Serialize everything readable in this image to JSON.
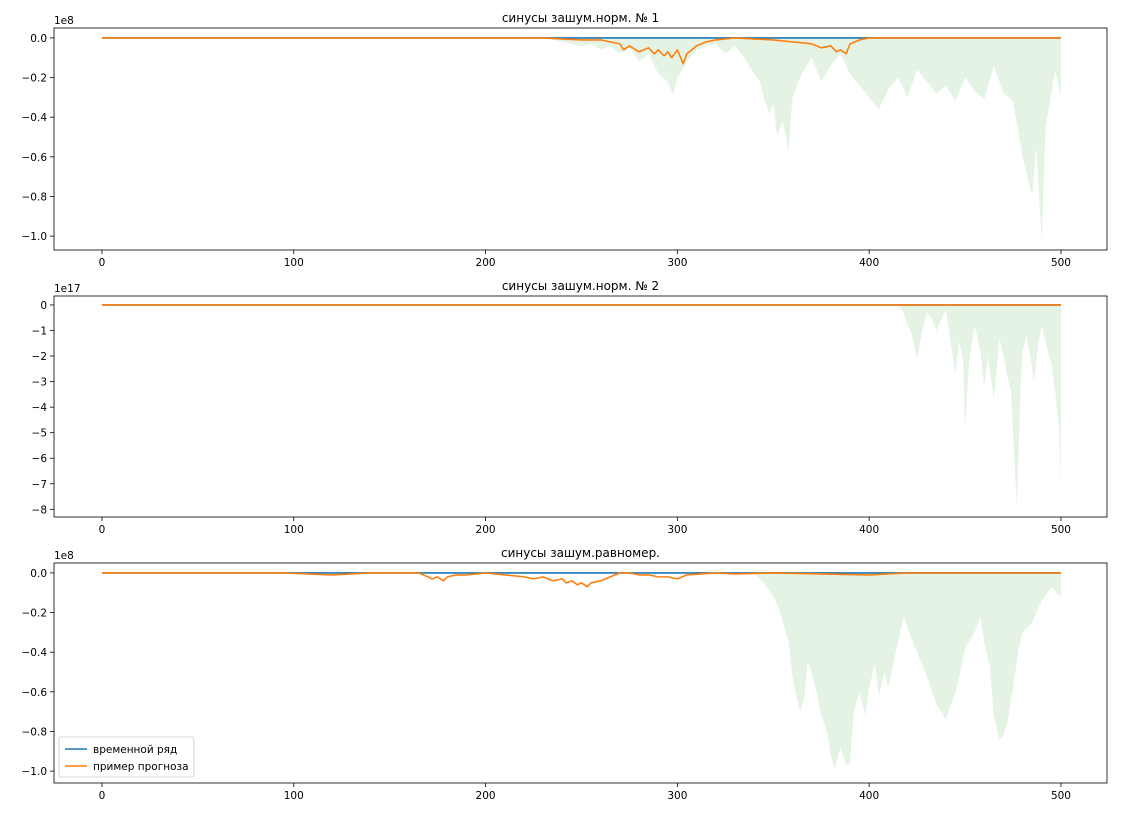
{
  "chart_data": [
    {
      "type": "line",
      "title": "синусы зашум.норм. № 1",
      "xlabel": "",
      "ylabel": "",
      "exponent_label": "1e8",
      "xlim": [
        -25,
        524
      ],
      "ylim": [
        -1.07,
        0.05
      ],
      "xticks": [
        0,
        100,
        200,
        300,
        400,
        500
      ],
      "xtick_labels": [
        "0",
        "100",
        "200",
        "300",
        "400",
        "500"
      ],
      "yticks": [
        0.0,
        -0.2,
        -0.4,
        -0.6,
        -0.8,
        -1.0
      ],
      "ytick_labels": [
        "0.0",
        "−0.2",
        "−0.4",
        "−0.6",
        "−0.8",
        "−1.0"
      ],
      "grid": false,
      "legend": null,
      "series": [
        {
          "color": "#1f77b4",
          "x": [
            0,
            500
          ],
          "values": [
            0,
            0
          ]
        },
        {
          "color": "#ff7f0e",
          "x": [
            0,
            230,
            250,
            260,
            265,
            270,
            272,
            275,
            280,
            285,
            288,
            290,
            293,
            295,
            297,
            300,
            303,
            305,
            310,
            315,
            320,
            330,
            340,
            350,
            360,
            370,
            375,
            380,
            383,
            385,
            388,
            390,
            395,
            400,
            410,
            500
          ],
          "values": [
            0,
            0,
            -0.01,
            -0.01,
            -0.02,
            -0.03,
            -0.06,
            -0.04,
            -0.07,
            -0.05,
            -0.08,
            -0.06,
            -0.09,
            -0.07,
            -0.1,
            -0.06,
            -0.13,
            -0.08,
            -0.04,
            -0.02,
            -0.01,
            0,
            -0.005,
            -0.01,
            -0.02,
            -0.03,
            -0.05,
            -0.04,
            -0.07,
            -0.06,
            -0.08,
            -0.03,
            -0.01,
            0,
            0,
            0
          ]
        }
      ],
      "band": {
        "color": "#2ca02c",
        "opacity": 0.13,
        "x": [
          230,
          240,
          250,
          255,
          260,
          265,
          270,
          275,
          280,
          285,
          290,
          295,
          298,
          300,
          305,
          310,
          315,
          320,
          325,
          330,
          335,
          340,
          343,
          345,
          348,
          350,
          352,
          355,
          358,
          360,
          365,
          370,
          375,
          380,
          385,
          390,
          395,
          400,
          405,
          410,
          415,
          420,
          425,
          430,
          435,
          440,
          445,
          450,
          455,
          460,
          465,
          470,
          475,
          480,
          485,
          487,
          490,
          492,
          495,
          497,
          500
        ],
        "lower": [
          0,
          -0.02,
          -0.04,
          -0.03,
          -0.06,
          -0.04,
          -0.08,
          -0.05,
          -0.12,
          -0.08,
          -0.18,
          -0.22,
          -0.29,
          -0.2,
          -0.12,
          -0.06,
          -0.04,
          -0.03,
          -0.08,
          -0.04,
          -0.1,
          -0.18,
          -0.22,
          -0.3,
          -0.38,
          -0.33,
          -0.49,
          -0.42,
          -0.57,
          -0.3,
          -0.18,
          -0.1,
          -0.22,
          -0.14,
          -0.08,
          -0.18,
          -0.24,
          -0.3,
          -0.36,
          -0.26,
          -0.2,
          -0.3,
          -0.16,
          -0.22,
          -0.28,
          -0.24,
          -0.32,
          -0.2,
          -0.27,
          -0.31,
          -0.14,
          -0.28,
          -0.32,
          -0.6,
          -0.8,
          -0.55,
          -1.02,
          -0.45,
          -0.28,
          -0.16,
          -0.3
        ]
      }
    },
    {
      "type": "line",
      "title": "синусы зашум.норм. № 2",
      "xlabel": "",
      "ylabel": "",
      "exponent_label": "1e17",
      "xlim": [
        -25,
        524
      ],
      "ylim": [
        -8.3,
        0.35
      ],
      "xticks": [
        0,
        100,
        200,
        300,
        400,
        500
      ],
      "xtick_labels": [
        "0",
        "100",
        "200",
        "300",
        "400",
        "500"
      ],
      "yticks": [
        0,
        -1,
        -2,
        -3,
        -4,
        -5,
        -6,
        -7,
        -8
      ],
      "ytick_labels": [
        "0",
        "−1",
        "−2",
        "−3",
        "−4",
        "−5",
        "−6",
        "−7",
        "−8"
      ],
      "grid": false,
      "legend": null,
      "series": [
        {
          "color": "#1f77b4",
          "x": [
            0,
            500
          ],
          "values": [
            0,
            0
          ]
        },
        {
          "color": "#ff7f0e",
          "x": [
            0,
            500
          ],
          "values": [
            0,
            0
          ]
        }
      ],
      "band": {
        "color": "#2ca02c",
        "opacity": 0.13,
        "x": [
          415,
          418,
          420,
          422,
          425,
          428,
          430,
          433,
          435,
          438,
          440,
          442,
          445,
          447,
          449,
          450,
          452,
          455,
          458,
          460,
          462,
          465,
          468,
          470,
          472,
          474,
          476,
          477,
          478,
          479,
          480,
          482,
          484,
          486,
          488,
          490,
          492,
          495,
          497,
          499,
          500
        ],
        "lower": [
          0,
          -0.3,
          -0.8,
          -1.1,
          -2.1,
          -0.9,
          -0.3,
          -0.6,
          -1.0,
          -0.5,
          -0.2,
          -1.2,
          -2.7,
          -1.4,
          -2.2,
          -4.9,
          -2.3,
          -0.8,
          -1.8,
          -3.2,
          -2.0,
          -3.7,
          -1.3,
          -2.0,
          -2.8,
          -3.4,
          -6.5,
          -7.9,
          -5.5,
          -3.1,
          -1.8,
          -1.2,
          -2.0,
          -3.0,
          -1.6,
          -0.8,
          -1.5,
          -2.3,
          -3.4,
          -4.8,
          -7.0
        ]
      }
    },
    {
      "type": "line",
      "title": "синусы зашум.равномер.",
      "xlabel": "",
      "ylabel": "",
      "exponent_label": "1e8",
      "xlim": [
        -25,
        524
      ],
      "ylim": [
        -1.06,
        0.05
      ],
      "xticks": [
        0,
        100,
        200,
        300,
        400,
        500
      ],
      "xtick_labels": [
        "0",
        "100",
        "200",
        "300",
        "400",
        "500"
      ],
      "yticks": [
        0.0,
        -0.2,
        -0.4,
        -0.6,
        -0.8,
        -1.0
      ],
      "ytick_labels": [
        "0.0",
        "−0.2",
        "−0.4",
        "−0.6",
        "−0.8",
        "−1.0"
      ],
      "grid": false,
      "legend": {
        "position": "lower left",
        "labels": [
          "временной ряд",
          "пример прогноза"
        ]
      },
      "series": [
        {
          "name": "временной ряд",
          "color": "#1f77b4",
          "x": [
            0,
            500
          ],
          "values": [
            0,
            0
          ]
        },
        {
          "name": "пример прогноза",
          "color": "#ff7f0e",
          "x": [
            0,
            95,
            120,
            140,
            165,
            170,
            172,
            175,
            178,
            180,
            185,
            190,
            200,
            220,
            225,
            230,
            235,
            240,
            242,
            245,
            248,
            250,
            253,
            255,
            260,
            265,
            270,
            275,
            280,
            285,
            290,
            295,
            300,
            305,
            320,
            330,
            350,
            400,
            420,
            500
          ],
          "values": [
            0,
            0,
            -0.01,
            0,
            0,
            -0.02,
            -0.03,
            -0.02,
            -0.04,
            -0.02,
            -0.01,
            -0.01,
            0,
            -0.02,
            -0.03,
            -0.02,
            -0.04,
            -0.03,
            -0.05,
            -0.04,
            -0.06,
            -0.05,
            -0.07,
            -0.05,
            -0.04,
            -0.02,
            0,
            0,
            -0.01,
            -0.01,
            -0.02,
            -0.02,
            -0.03,
            -0.01,
            0,
            -0.005,
            0,
            -0.01,
            0,
            0
          ]
        }
      ],
      "band": {
        "color": "#2ca02c",
        "opacity": 0.13,
        "x": [
          340,
          345,
          350,
          353,
          355,
          358,
          360,
          362,
          364,
          366,
          368,
          370,
          373,
          375,
          378,
          380,
          382,
          385,
          388,
          390,
          392,
          395,
          398,
          400,
          403,
          405,
          408,
          410,
          413,
          415,
          418,
          420,
          425,
          430,
          435,
          440,
          445,
          448,
          450,
          455,
          458,
          460,
          463,
          465,
          468,
          470,
          472,
          475,
          478,
          480,
          485,
          490,
          495,
          500
        ],
        "lower": [
          0,
          -0.05,
          -0.12,
          -0.18,
          -0.25,
          -0.35,
          -0.52,
          -0.62,
          -0.7,
          -0.64,
          -0.45,
          -0.5,
          -0.62,
          -0.72,
          -0.8,
          -0.92,
          -0.99,
          -0.88,
          -0.97,
          -0.96,
          -0.7,
          -0.6,
          -0.72,
          -0.58,
          -0.46,
          -0.62,
          -0.5,
          -0.58,
          -0.44,
          -0.35,
          -0.22,
          -0.28,
          -0.4,
          -0.52,
          -0.66,
          -0.74,
          -0.6,
          -0.48,
          -0.38,
          -0.3,
          -0.22,
          -0.35,
          -0.48,
          -0.72,
          -0.84,
          -0.82,
          -0.76,
          -0.58,
          -0.38,
          -0.3,
          -0.25,
          -0.14,
          -0.07,
          -0.12
        ]
      }
    }
  ]
}
